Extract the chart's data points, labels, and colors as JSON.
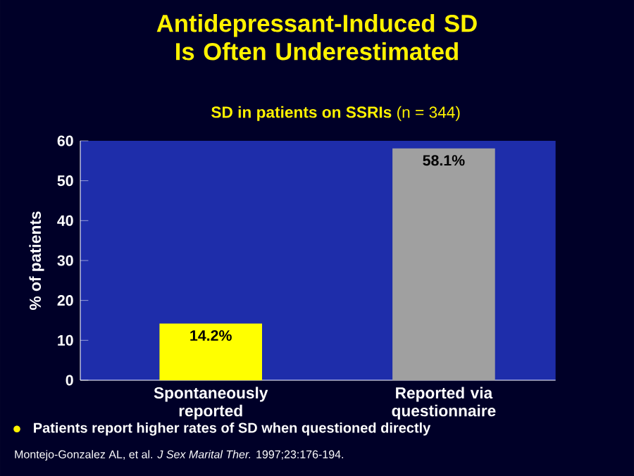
{
  "chart_data": {
    "type": "bar",
    "title": "Antidepressant-Induced SD Is Often Underestimated",
    "subtitle": "**SD in patients on SSRIs** (n = 344)",
    "ylabel": "% of patients",
    "categories": [
      "Spontaneously reported",
      "Reported via questionnaire"
    ],
    "values": [
      14.2,
      58.1
    ],
    "value_labels": [
      "14.2%",
      "58.1%"
    ],
    "colors": [
      "#ffff00",
      "#a0a0a0"
    ],
    "ylim": [
      0,
      60
    ],
    "yticks": [
      0,
      10,
      20,
      30,
      40,
      50,
      60
    ],
    "annotations": [
      "Patients report higher rates of SD when questioned directly",
      "Montejo-Gonzalez AL, et al.  *J Sex Marital Ther.* 1997;23:176-194."
    ]
  }
}
